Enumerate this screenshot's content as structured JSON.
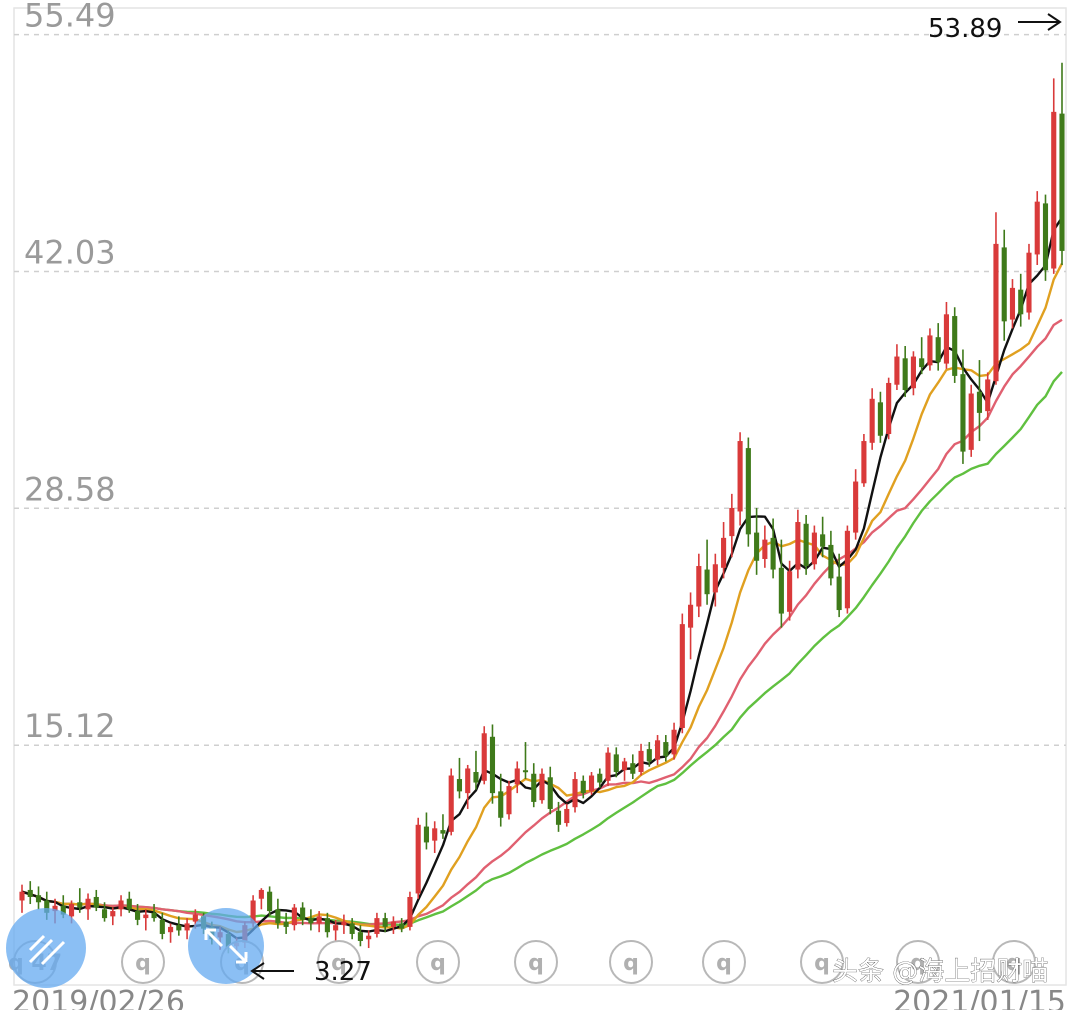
{
  "chart_data": {
    "type": "candlestick",
    "y_ticks": [
      "55.49",
      "42.03",
      "28.58",
      "15.12"
    ],
    "ylim": [
      1.5,
      57.0
    ],
    "high_annotation": "53.89",
    "low_annotation": "3.27",
    "start_date": "2019/02/26",
    "end_date": "2021/01/15",
    "grid": "dashed horizontal",
    "colors": {
      "up": "#d93a3a",
      "down": "#3f7a1a",
      "ma5": "#111111",
      "ma10": "#e0a020",
      "ma20": "#e06070",
      "ma30": "#60c040"
    },
    "candles": [
      [
        6.3,
        7.2,
        5.6,
        6.8
      ],
      [
        6.9,
        7.4,
        6.1,
        6.5
      ],
      [
        6.6,
        7.1,
        5.8,
        6.2
      ],
      [
        6.3,
        6.8,
        5.2,
        5.6
      ],
      [
        5.7,
        6.4,
        5.0,
        6.0
      ],
      [
        6.0,
        6.6,
        5.3,
        5.5
      ],
      [
        5.4,
        6.3,
        5.0,
        6.1
      ],
      [
        6.2,
        7.0,
        5.6,
        5.9
      ],
      [
        5.8,
        6.7,
        5.2,
        6.4
      ],
      [
        6.5,
        6.9,
        5.7,
        5.9
      ],
      [
        5.8,
        6.2,
        5.1,
        5.3
      ],
      [
        5.4,
        5.9,
        4.9,
        5.7
      ],
      [
        5.8,
        6.6,
        5.4,
        6.3
      ],
      [
        6.4,
        6.8,
        5.6,
        5.8
      ],
      [
        5.7,
        6.1,
        4.9,
        5.2
      ],
      [
        5.3,
        5.8,
        4.6,
        5.5
      ],
      [
        5.6,
        6.1,
        5.1,
        5.3
      ],
      [
        5.2,
        5.6,
        4.1,
        4.4
      ],
      [
        4.5,
        5.0,
        3.9,
        4.8
      ],
      [
        4.9,
        5.4,
        4.3,
        4.6
      ],
      [
        4.6,
        5.3,
        4.1,
        5.0
      ],
      [
        5.1,
        5.8,
        4.7,
        5.5
      ],
      [
        5.4,
        5.6,
        4.4,
        4.7
      ],
      [
        4.8,
        5.1,
        3.8,
        4.1
      ],
      [
        4.2,
        4.8,
        3.5,
        4.5
      ],
      [
        4.4,
        4.6,
        3.3,
        3.6
      ],
      [
        3.7,
        4.2,
        3.27,
        3.9
      ],
      [
        3.9,
        5.1,
        3.6,
        4.9
      ],
      [
        5.0,
        6.6,
        4.8,
        6.3
      ],
      [
        6.4,
        7.0,
        5.8,
        6.9
      ],
      [
        6.8,
        7.1,
        5.4,
        5.7
      ],
      [
        5.8,
        6.4,
        4.7,
        5.0
      ],
      [
        5.1,
        5.6,
        4.4,
        4.8
      ],
      [
        4.9,
        6.1,
        4.6,
        5.9
      ],
      [
        5.9,
        6.2,
        4.9,
        5.2
      ],
      [
        5.3,
        5.8,
        4.6,
        5.0
      ],
      [
        5.0,
        5.7,
        4.5,
        5.4
      ],
      [
        5.3,
        5.6,
        4.2,
        4.5
      ],
      [
        4.6,
        5.2,
        4.0,
        4.9
      ],
      [
        4.9,
        5.5,
        4.4,
        5.1
      ],
      [
        5.0,
        5.3,
        4.1,
        4.4
      ],
      [
        4.5,
        4.9,
        3.7,
        4.0
      ],
      [
        4.1,
        4.6,
        3.6,
        4.3
      ],
      [
        4.4,
        5.6,
        4.2,
        5.3
      ],
      [
        5.3,
        5.6,
        4.5,
        4.8
      ],
      [
        4.8,
        5.4,
        4.4,
        5.1
      ],
      [
        5.0,
        5.3,
        4.5,
        4.7
      ],
      [
        4.8,
        6.8,
        4.6,
        6.5
      ],
      [
        6.7,
        11.0,
        6.4,
        10.6
      ],
      [
        10.5,
        11.3,
        9.2,
        9.6
      ],
      [
        9.7,
        10.8,
        9.0,
        10.4
      ],
      [
        10.3,
        11.2,
        9.8,
        10.1
      ],
      [
        10.2,
        13.8,
        10.0,
        13.4
      ],
      [
        13.2,
        14.4,
        12.1,
        12.5
      ],
      [
        12.4,
        14.0,
        11.5,
        13.8
      ],
      [
        13.6,
        14.8,
        12.6,
        13.0
      ],
      [
        13.1,
        16.2,
        12.9,
        15.8
      ],
      [
        15.6,
        16.3,
        11.8,
        12.4
      ],
      [
        12.5,
        13.5,
        10.5,
        11.0
      ],
      [
        11.2,
        13.1,
        10.9,
        12.8
      ],
      [
        12.9,
        14.2,
        12.4,
        13.8
      ],
      [
        13.7,
        15.3,
        13.2,
        13.6
      ],
      [
        13.5,
        14.1,
        11.6,
        11.9
      ],
      [
        12.0,
        13.8,
        11.8,
        13.5
      ],
      [
        13.3,
        13.9,
        11.2,
        11.5
      ],
      [
        11.4,
        11.9,
        10.2,
        10.6
      ],
      [
        10.7,
        11.8,
        10.5,
        11.5
      ],
      [
        11.6,
        13.6,
        11.3,
        13.2
      ],
      [
        13.1,
        13.4,
        12.1,
        12.4
      ],
      [
        12.5,
        13.6,
        12.3,
        13.4
      ],
      [
        13.5,
        13.8,
        12.7,
        13.0
      ],
      [
        13.1,
        15.0,
        12.8,
        14.7
      ],
      [
        14.6,
        15.0,
        13.3,
        13.6
      ],
      [
        13.7,
        14.4,
        13.1,
        14.2
      ],
      [
        14.1,
        14.6,
        13.2,
        13.5
      ],
      [
        13.6,
        15.2,
        13.4,
        14.8
      ],
      [
        14.9,
        15.3,
        13.9,
        14.2
      ],
      [
        14.3,
        15.7,
        14.0,
        15.4
      ],
      [
        15.3,
        15.7,
        14.2,
        14.5
      ],
      [
        14.6,
        16.4,
        14.3,
        16.0
      ],
      [
        16.1,
        22.6,
        15.8,
        22.0
      ],
      [
        21.8,
        23.8,
        20.0,
        23.1
      ],
      [
        23.0,
        26.0,
        22.4,
        25.3
      ],
      [
        25.1,
        26.8,
        23.1,
        23.7
      ],
      [
        23.8,
        26.0,
        23.0,
        25.4
      ],
      [
        25.2,
        27.8,
        24.6,
        26.9
      ],
      [
        27.0,
        29.4,
        25.8,
        28.6
      ],
      [
        28.4,
        32.9,
        27.6,
        32.4
      ],
      [
        32.0,
        32.6,
        26.4,
        27.1
      ],
      [
        27.2,
        28.6,
        24.8,
        25.6
      ],
      [
        25.7,
        27.6,
        25.2,
        26.8
      ],
      [
        26.9,
        28.0,
        24.6,
        25.1
      ],
      [
        25.2,
        26.8,
        21.8,
        22.6
      ],
      [
        22.7,
        25.6,
        22.2,
        25.0
      ],
      [
        25.1,
        28.5,
        24.6,
        27.8
      ],
      [
        27.7,
        28.2,
        24.8,
        25.3
      ],
      [
        25.4,
        27.6,
        25.1,
        27.2
      ],
      [
        27.1,
        28.1,
        25.8,
        26.4
      ],
      [
        26.5,
        27.3,
        24.2,
        24.6
      ],
      [
        24.7,
        26.0,
        22.4,
        22.8
      ],
      [
        22.9,
        27.6,
        22.6,
        27.3
      ],
      [
        27.2,
        30.8,
        26.8,
        30.1
      ],
      [
        30.0,
        32.8,
        29.8,
        32.4
      ],
      [
        32.3,
        35.4,
        31.9,
        34.8
      ],
      [
        34.6,
        35.2,
        32.3,
        32.7
      ],
      [
        32.8,
        36.0,
        32.5,
        35.7
      ],
      [
        35.6,
        37.9,
        35.3,
        37.2
      ],
      [
        37.1,
        37.8,
        34.9,
        35.3
      ],
      [
        35.4,
        37.5,
        35.0,
        37.2
      ],
      [
        37.1,
        38.3,
        36.2,
        36.6
      ],
      [
        36.7,
        38.8,
        36.4,
        38.4
      ],
      [
        38.3,
        39.1,
        36.4,
        36.9
      ],
      [
        36.8,
        40.3,
        36.5,
        39.6
      ],
      [
        39.5,
        40.0,
        35.7,
        36.1
      ],
      [
        36.2,
        37.6,
        31.1,
        31.8
      ],
      [
        31.9,
        35.6,
        31.5,
        35.1
      ],
      [
        35.2,
        37.0,
        32.4,
        34.0
      ],
      [
        34.1,
        36.3,
        33.6,
        35.9
      ],
      [
        35.8,
        45.4,
        35.6,
        43.6
      ],
      [
        43.4,
        44.4,
        38.1,
        39.2
      ],
      [
        39.3,
        41.6,
        38.8,
        41.1
      ],
      [
        41.0,
        41.9,
        38.9,
        39.6
      ],
      [
        39.7,
        43.6,
        39.3,
        43.1
      ],
      [
        43.0,
        46.6,
        42.4,
        46.0
      ],
      [
        45.9,
        46.4,
        41.5,
        42.1
      ],
      [
        42.2,
        53.0,
        41.9,
        51.1
      ],
      [
        51.0,
        53.89,
        42.4,
        43.2
      ]
    ]
  },
  "watermark": "头条 @海上招财喵",
  "q_badge": "q",
  "q_badge_first": "q 47"
}
